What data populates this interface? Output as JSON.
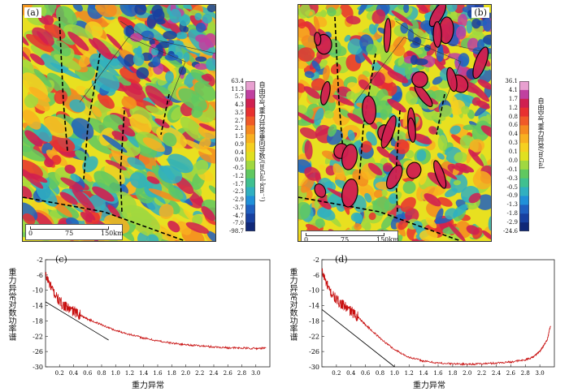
{
  "map_a": {
    "tag": "(a)",
    "scale_ticks": [
      "0",
      "75",
      "150km"
    ],
    "colorbar_ticks": [
      "63.4",
      "11.3",
      "5.7",
      "4.3",
      "3.5",
      "2.7",
      "2.1",
      "1.5",
      "0.9",
      "0.4",
      "0.0",
      "-0.5",
      "-1.2",
      "-1.7",
      "-2.3",
      "-2.9",
      "-3.7",
      "-4.7",
      "-7.0",
      "-98.7"
    ],
    "colorbar_title": "自由空气重力异常垂向导数/(mGal·km⁻¹)"
  },
  "map_b": {
    "tag": "(b)",
    "scale_ticks": [
      "0",
      "75",
      "150km"
    ],
    "colorbar_ticks": [
      "36.1",
      "4.1",
      "1.7",
      "1.2",
      "0.8",
      "0.6",
      "0.4",
      "0.3",
      "0.1",
      "0.0",
      "-0.1",
      "-0.3",
      "-0.5",
      "-0.9",
      "-1.3",
      "-1.8",
      "-2.9",
      "-24.6"
    ],
    "colorbar_title": "自由空气重力异常/mGal"
  },
  "colorbar_colors": [
    "#e8a0d0",
    "#c040a0",
    "#d02050",
    "#e83030",
    "#f05a28",
    "#f58a20",
    "#f8b020",
    "#f5d020",
    "#e0e020",
    "#a0d840",
    "#60c860",
    "#40c090",
    "#30b0c0",
    "#2090d8",
    "#2060c0",
    "#1840a0",
    "#102878"
  ],
  "charts": [
    {
      "tag": "(c)",
      "chart_data": {
        "type": "line",
        "xlabel": "重力异常",
        "ylabel": "重力异常对数功率谱",
        "xlim": [
          0,
          3.2
        ],
        "ylim": [
          -30,
          -2
        ],
        "xticks": [
          "0.2",
          "0.4",
          "0.6",
          "0.8",
          "1.0",
          "1.2",
          "1.4",
          "1.6",
          "1.8",
          "2.0",
          "2.2",
          "2.4",
          "2.6",
          "2.8",
          "3.0"
        ],
        "yticks": [
          "-2",
          "-6",
          "-10",
          "-14",
          "-18",
          "-22",
          "-26",
          "-30"
        ],
        "series": [
          {
            "color": "#c81010",
            "x": [
              0.0,
              0.1,
              0.2,
              0.3,
              0.4,
              0.5,
              0.6,
              0.8,
              1.0,
              1.2,
              1.4,
              1.6,
              1.8,
              2.0,
              2.2,
              2.4,
              2.6,
              2.8,
              3.0,
              3.15
            ],
            "y": [
              -6,
              -10,
              -13,
              -14.5,
              -15.5,
              -16.5,
              -17.5,
              -19,
              -20.5,
              -21.5,
              -22.5,
              -23.2,
              -23.8,
              -24.2,
              -24.5,
              -24.8,
              -25,
              -25.1,
              -25.2,
              -25.1
            ]
          }
        ],
        "fit_line": {
          "x": [
            0.0,
            0.9
          ],
          "y": [
            -13,
            -23
          ]
        }
      }
    },
    {
      "tag": "(d)",
      "chart_data": {
        "type": "line",
        "xlabel": "重力异常",
        "ylabel": "重力异常对数功率谱",
        "xlim": [
          0,
          3.2
        ],
        "ylim": [
          -30,
          -2
        ],
        "xticks": [
          "0.2",
          "0.4",
          "0.6",
          "0.8",
          "1.0",
          "1.2",
          "1.4",
          "1.6",
          "1.8",
          "2.0",
          "2.2",
          "2.4",
          "2.6",
          "2.8",
          "3.0"
        ],
        "yticks": [
          "-2",
          "-6",
          "-10",
          "-14",
          "-18",
          "-22",
          "-26",
          "-30"
        ],
        "series": [
          {
            "color": "#c81010",
            "x": [
              0.0,
              0.1,
              0.2,
              0.3,
              0.4,
              0.5,
              0.6,
              0.8,
              1.0,
              1.2,
              1.4,
              1.6,
              1.8,
              2.0,
              2.2,
              2.4,
              2.6,
              2.8,
              2.9,
              3.0,
              3.1,
              3.15
            ],
            "y": [
              -5,
              -10,
              -12.5,
              -14,
              -15.5,
              -17,
              -19,
              -22.5,
              -25.5,
              -27.5,
              -28.5,
              -29,
              -29.2,
              -29.3,
              -29.2,
              -29,
              -28.7,
              -28.2,
              -27.5,
              -26,
              -23,
              -19
            ]
          }
        ],
        "fit_line": {
          "x": [
            0.0,
            1.0
          ],
          "y": [
            -15,
            -30
          ]
        }
      }
    }
  ]
}
